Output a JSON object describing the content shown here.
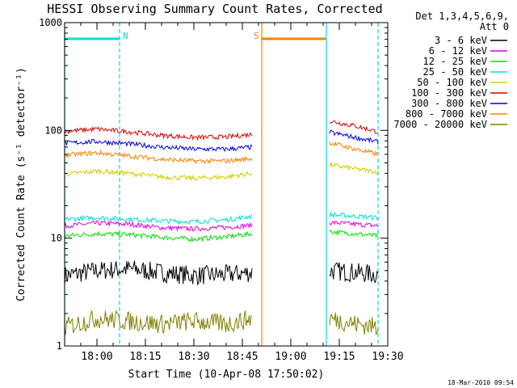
{
  "chart_data": {
    "type": "line",
    "title": "HESSI Observing Summary Count Rates, Corrected",
    "xlabel": "Start Time (10-Apr-08 17:50:02)",
    "ylabel": "Corrected Count Rate (s⁻¹ detector⁻¹)",
    "y_scale": "log",
    "ylim": [
      1,
      1000
    ],
    "xlim": [
      "17:50",
      "19:30"
    ],
    "x_ticks": [
      "18:00",
      "18:15",
      "18:30",
      "18:45",
      "19:00",
      "19:15",
      "19:30"
    ],
    "y_ticks": [
      "1",
      "10",
      "100",
      "1000"
    ],
    "legend_header": [
      "Det 1,3,4,5,6,9,",
      "Att 0"
    ],
    "legend_position": "right",
    "footer": "18-Mar-2010 09:54",
    "markers": [
      {
        "label": "N",
        "start": "17:50",
        "end": "18:07",
        "color": "#00e0e0"
      },
      {
        "label": "S",
        "start": "18:51",
        "end": "19:11",
        "color": "#ff8000"
      }
    ],
    "vlines": [
      {
        "time": "17:50",
        "color": "#00e0e0",
        "style": "solid"
      },
      {
        "time": "18:07",
        "color": "#00e0e0",
        "style": "dashed"
      },
      {
        "time": "18:51",
        "color": "#ff8000",
        "style": "solid"
      },
      {
        "time": "19:11",
        "color": "#00e0e0",
        "style": "solid"
      },
      {
        "time": "19:27",
        "color": "#00e0e0",
        "style": "dashed"
      }
    ],
    "series": [
      {
        "name": "3 - 6 keV",
        "color": "#000000",
        "segments": [
          {
            "x": [
              "17:50",
              "18:00",
              "18:10",
              "18:20",
              "18:30",
              "18:40",
              "18:48"
            ],
            "y": [
              4.5,
              5,
              5.2,
              4.8,
              4.5,
              4.6,
              4.8
            ]
          },
          {
            "x": [
              "19:12",
              "19:20",
              "19:27"
            ],
            "y": [
              5,
              4.8,
              4.6
            ]
          }
        ]
      },
      {
        "name": "6 - 12 keV",
        "color": "#e000e0",
        "segments": [
          {
            "x": [
              "17:50",
              "18:00",
              "18:10",
              "18:20",
              "18:30",
              "18:40",
              "18:48"
            ],
            "y": [
              13,
              13.8,
              13.5,
              12.5,
              12.2,
              12.6,
              13.2
            ]
          },
          {
            "x": [
              "19:12",
              "19:20",
              "19:27"
            ],
            "y": [
              14,
              13.5,
              13
            ]
          }
        ]
      },
      {
        "name": "12 - 25 keV",
        "color": "#00e000",
        "segments": [
          {
            "x": [
              "17:50",
              "18:00",
              "18:10",
              "18:20",
              "18:30",
              "18:40",
              "18:48"
            ],
            "y": [
              10.5,
              11,
              10.8,
              10.2,
              9.8,
              10.3,
              11
            ]
          },
          {
            "x": [
              "19:12",
              "19:20",
              "19:27"
            ],
            "y": [
              11.5,
              11,
              10.5
            ]
          }
        ]
      },
      {
        "name": "25 - 50 keV",
        "color": "#00e0e0",
        "segments": [
          {
            "x": [
              "17:50",
              "18:00",
              "18:10",
              "18:20",
              "18:30",
              "18:40",
              "18:48"
            ],
            "y": [
              15,
              15.5,
              15,
              14.5,
              14.2,
              14.8,
              16
            ]
          },
          {
            "x": [
              "19:12",
              "19:20",
              "19:27"
            ],
            "y": [
              16.5,
              16,
              15.5
            ]
          }
        ]
      },
      {
        "name": "50 - 100 keV",
        "color": "#d0d000",
        "segments": [
          {
            "x": [
              "17:50",
              "18:00",
              "18:10",
              "18:20",
              "18:30",
              "18:40",
              "18:48"
            ],
            "y": [
              39,
              42,
              40,
              37,
              36,
              37,
              40
            ]
          },
          {
            "x": [
              "19:12",
              "19:20",
              "19:27"
            ],
            "y": [
              48,
              44,
              41
            ]
          }
        ]
      },
      {
        "name": "100 - 300 keV",
        "color": "#e00000",
        "segments": [
          {
            "x": [
              "17:50",
              "18:00",
              "18:10",
              "18:20",
              "18:30",
              "18:40",
              "18:48"
            ],
            "y": [
              98,
              103,
              97,
              90,
              86,
              87,
              92
            ]
          },
          {
            "x": [
              "19:12",
              "19:20",
              "19:27"
            ],
            "y": [
              122,
              110,
              97
            ]
          }
        ]
      },
      {
        "name": "300 - 800 keV",
        "color": "#0000e0",
        "segments": [
          {
            "x": [
              "17:50",
              "18:00",
              "18:10",
              "18:20",
              "18:30",
              "18:40",
              "18:48"
            ],
            "y": [
              76,
              79,
              75,
              70,
              67,
              67,
              70
            ]
          },
          {
            "x": [
              "19:12",
              "19:20",
              "19:27"
            ],
            "y": [
              96,
              86,
              78
            ]
          }
        ]
      },
      {
        "name": "800 - 7000 keV",
        "color": "#ff8000",
        "segments": [
          {
            "x": [
              "17:50",
              "18:00",
              "18:10",
              "18:20",
              "18:30",
              "18:40",
              "18:48"
            ],
            "y": [
              59,
              62,
              58,
              54,
              52,
              52,
              55
            ]
          },
          {
            "x": [
              "19:12",
              "19:20",
              "19:27"
            ],
            "y": [
              77,
              67,
              60
            ]
          }
        ]
      },
      {
        "name": "7000 - 20000 keV",
        "color": "#808000",
        "segments": [
          {
            "x": [
              "17:50",
              "18:00",
              "18:10",
              "18:20",
              "18:30",
              "18:40",
              "18:48"
            ],
            "y": [
              1.5,
              1.8,
              1.7,
              1.6,
              1.7,
              1.6,
              1.8
            ]
          },
          {
            "x": [
              "19:12",
              "19:20",
              "19:27"
            ],
            "y": [
              1.8,
              1.6,
              1.5
            ]
          }
        ]
      }
    ]
  }
}
